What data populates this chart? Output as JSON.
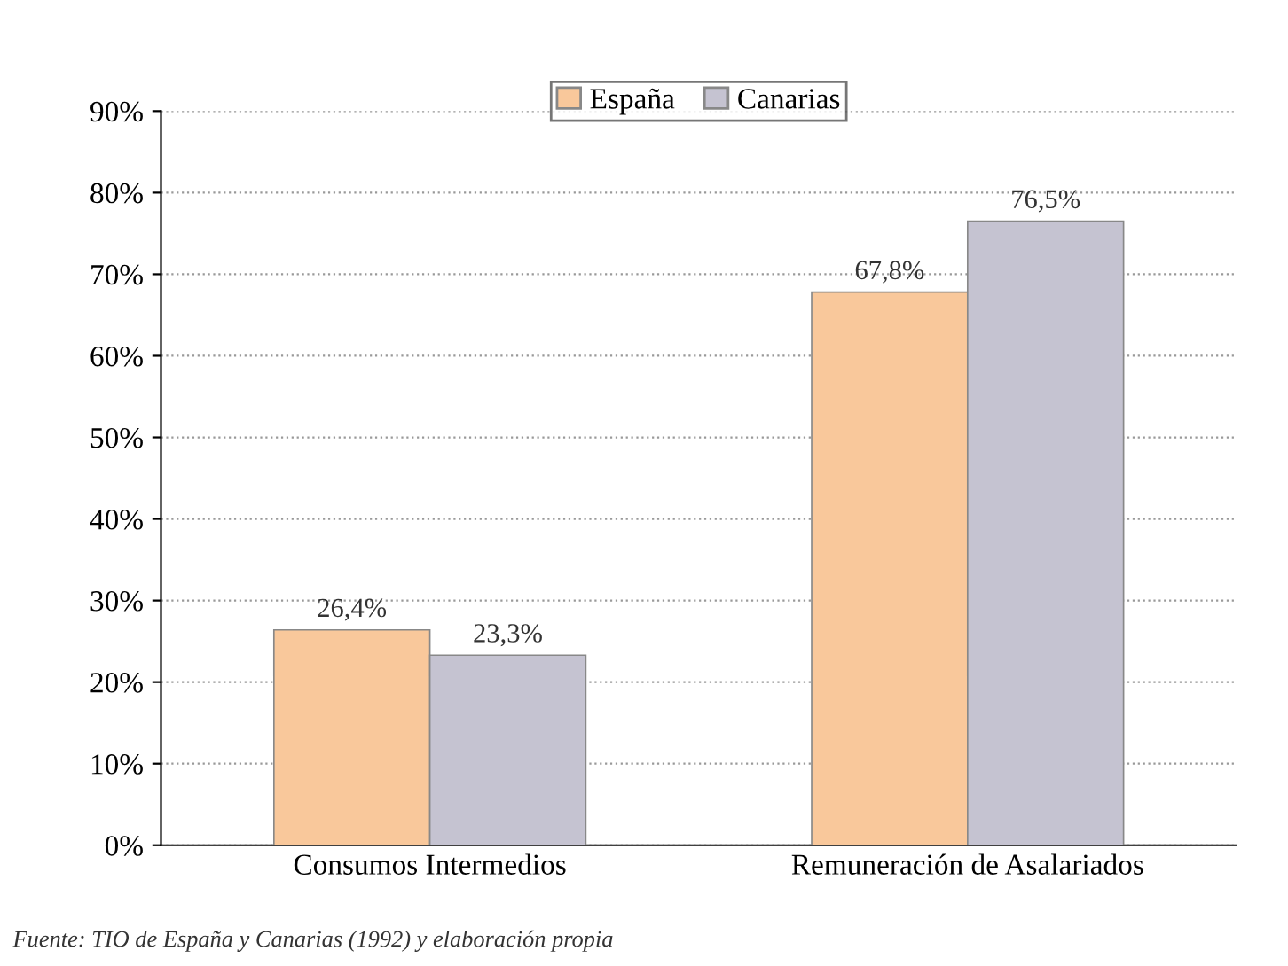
{
  "chart_data": {
    "type": "bar",
    "categories": [
      "Consumos Intermedios",
      "Remuneración de Asalariados"
    ],
    "series": [
      {
        "name": "España",
        "color": "#f9c89b",
        "values": [
          26.4,
          67.8
        ],
        "value_labels": [
          "26,4%",
          "67,8%"
        ]
      },
      {
        "name": "Canarias",
        "color": "#c5c3d1",
        "values": [
          23.3,
          76.5
        ],
        "value_labels": [
          "23,3%",
          "76,5%"
        ]
      }
    ],
    "ylim": [
      0,
      90
    ],
    "yticks": [
      {
        "value": 0,
        "label": "0%"
      },
      {
        "value": 10,
        "label": "10%"
      },
      {
        "value": 20,
        "label": "20%"
      },
      {
        "value": 30,
        "label": "30%"
      },
      {
        "value": 40,
        "label": "40%"
      },
      {
        "value": 50,
        "label": "50%"
      },
      {
        "value": 60,
        "label": "60%"
      },
      {
        "value": 70,
        "label": "70%"
      },
      {
        "value": 80,
        "label": "80%"
      },
      {
        "value": 90,
        "label": "90%"
      }
    ],
    "grid": "y",
    "legend": "top",
    "annotations": [
      "Fuente: TIO de España y Canarias (1992) y elaboración propia"
    ]
  }
}
